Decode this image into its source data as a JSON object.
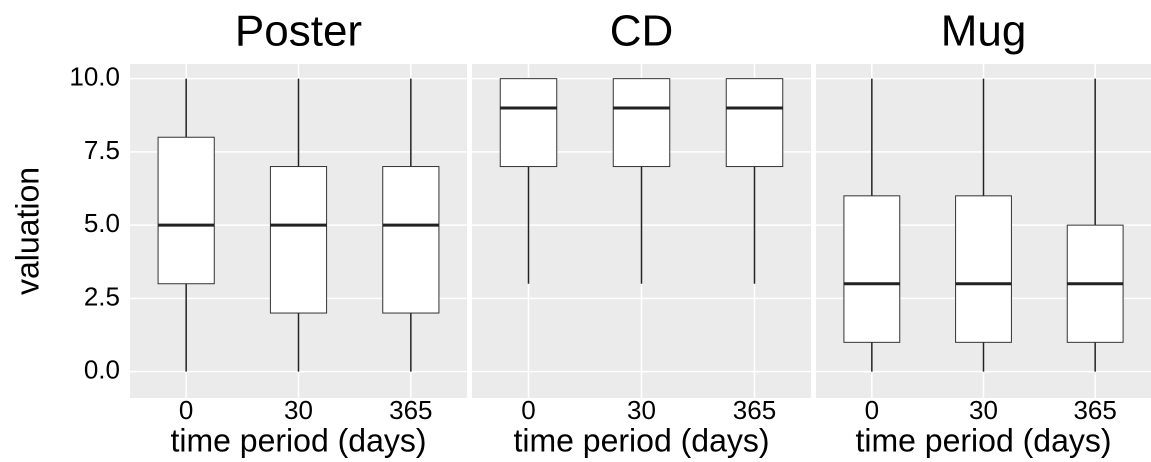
{
  "chart_data": [
    {
      "type": "box",
      "title": "Poster",
      "ylabel": "valuation",
      "xlabel": "time period (days)",
      "categories": [
        "0",
        "30",
        "365"
      ],
      "boxes": [
        {
          "min": 0,
          "q1": 3,
          "median": 5,
          "q3": 8,
          "max": 10
        },
        {
          "min": 0,
          "q1": 2,
          "median": 5,
          "q3": 7,
          "max": 10
        },
        {
          "min": 0,
          "q1": 2,
          "median": 5,
          "q3": 7,
          "max": 10
        }
      ],
      "ylim": [
        -0.9,
        10.5
      ],
      "yticks": [
        {
          "value": 0,
          "label": "0.0"
        },
        {
          "value": 2.5,
          "label": "2.5"
        },
        {
          "value": 5,
          "label": "5.0"
        },
        {
          "value": 7.5,
          "label": "7.5"
        },
        {
          "value": 10,
          "label": "10.0"
        }
      ],
      "grid": true,
      "color": "#ffffff"
    },
    {
      "type": "box",
      "title": "CD",
      "xlabel": "time period (days)",
      "categories": [
        "0",
        "30",
        "365"
      ],
      "boxes": [
        {
          "min": 3,
          "q1": 7,
          "median": 9,
          "q3": 10,
          "max": 10
        },
        {
          "min": 3,
          "q1": 7,
          "median": 9,
          "q3": 10,
          "max": 10
        },
        {
          "min": 3,
          "q1": 7,
          "median": 9,
          "q3": 10,
          "max": 10
        }
      ],
      "grid": true,
      "color": "#ffffff"
    },
    {
      "type": "box",
      "title": "Mug",
      "xlabel": "time period (days)",
      "categories": [
        "0",
        "30",
        "365"
      ],
      "boxes": [
        {
          "min": 0,
          "q1": 1,
          "median": 3,
          "q3": 6,
          "max": 10
        },
        {
          "min": 0,
          "q1": 1,
          "median": 3,
          "q3": 6,
          "max": 10
        },
        {
          "min": 0,
          "q1": 1,
          "median": 3,
          "q3": 5,
          "max": 10
        }
      ],
      "grid": true,
      "color": "#ffffff"
    }
  ]
}
